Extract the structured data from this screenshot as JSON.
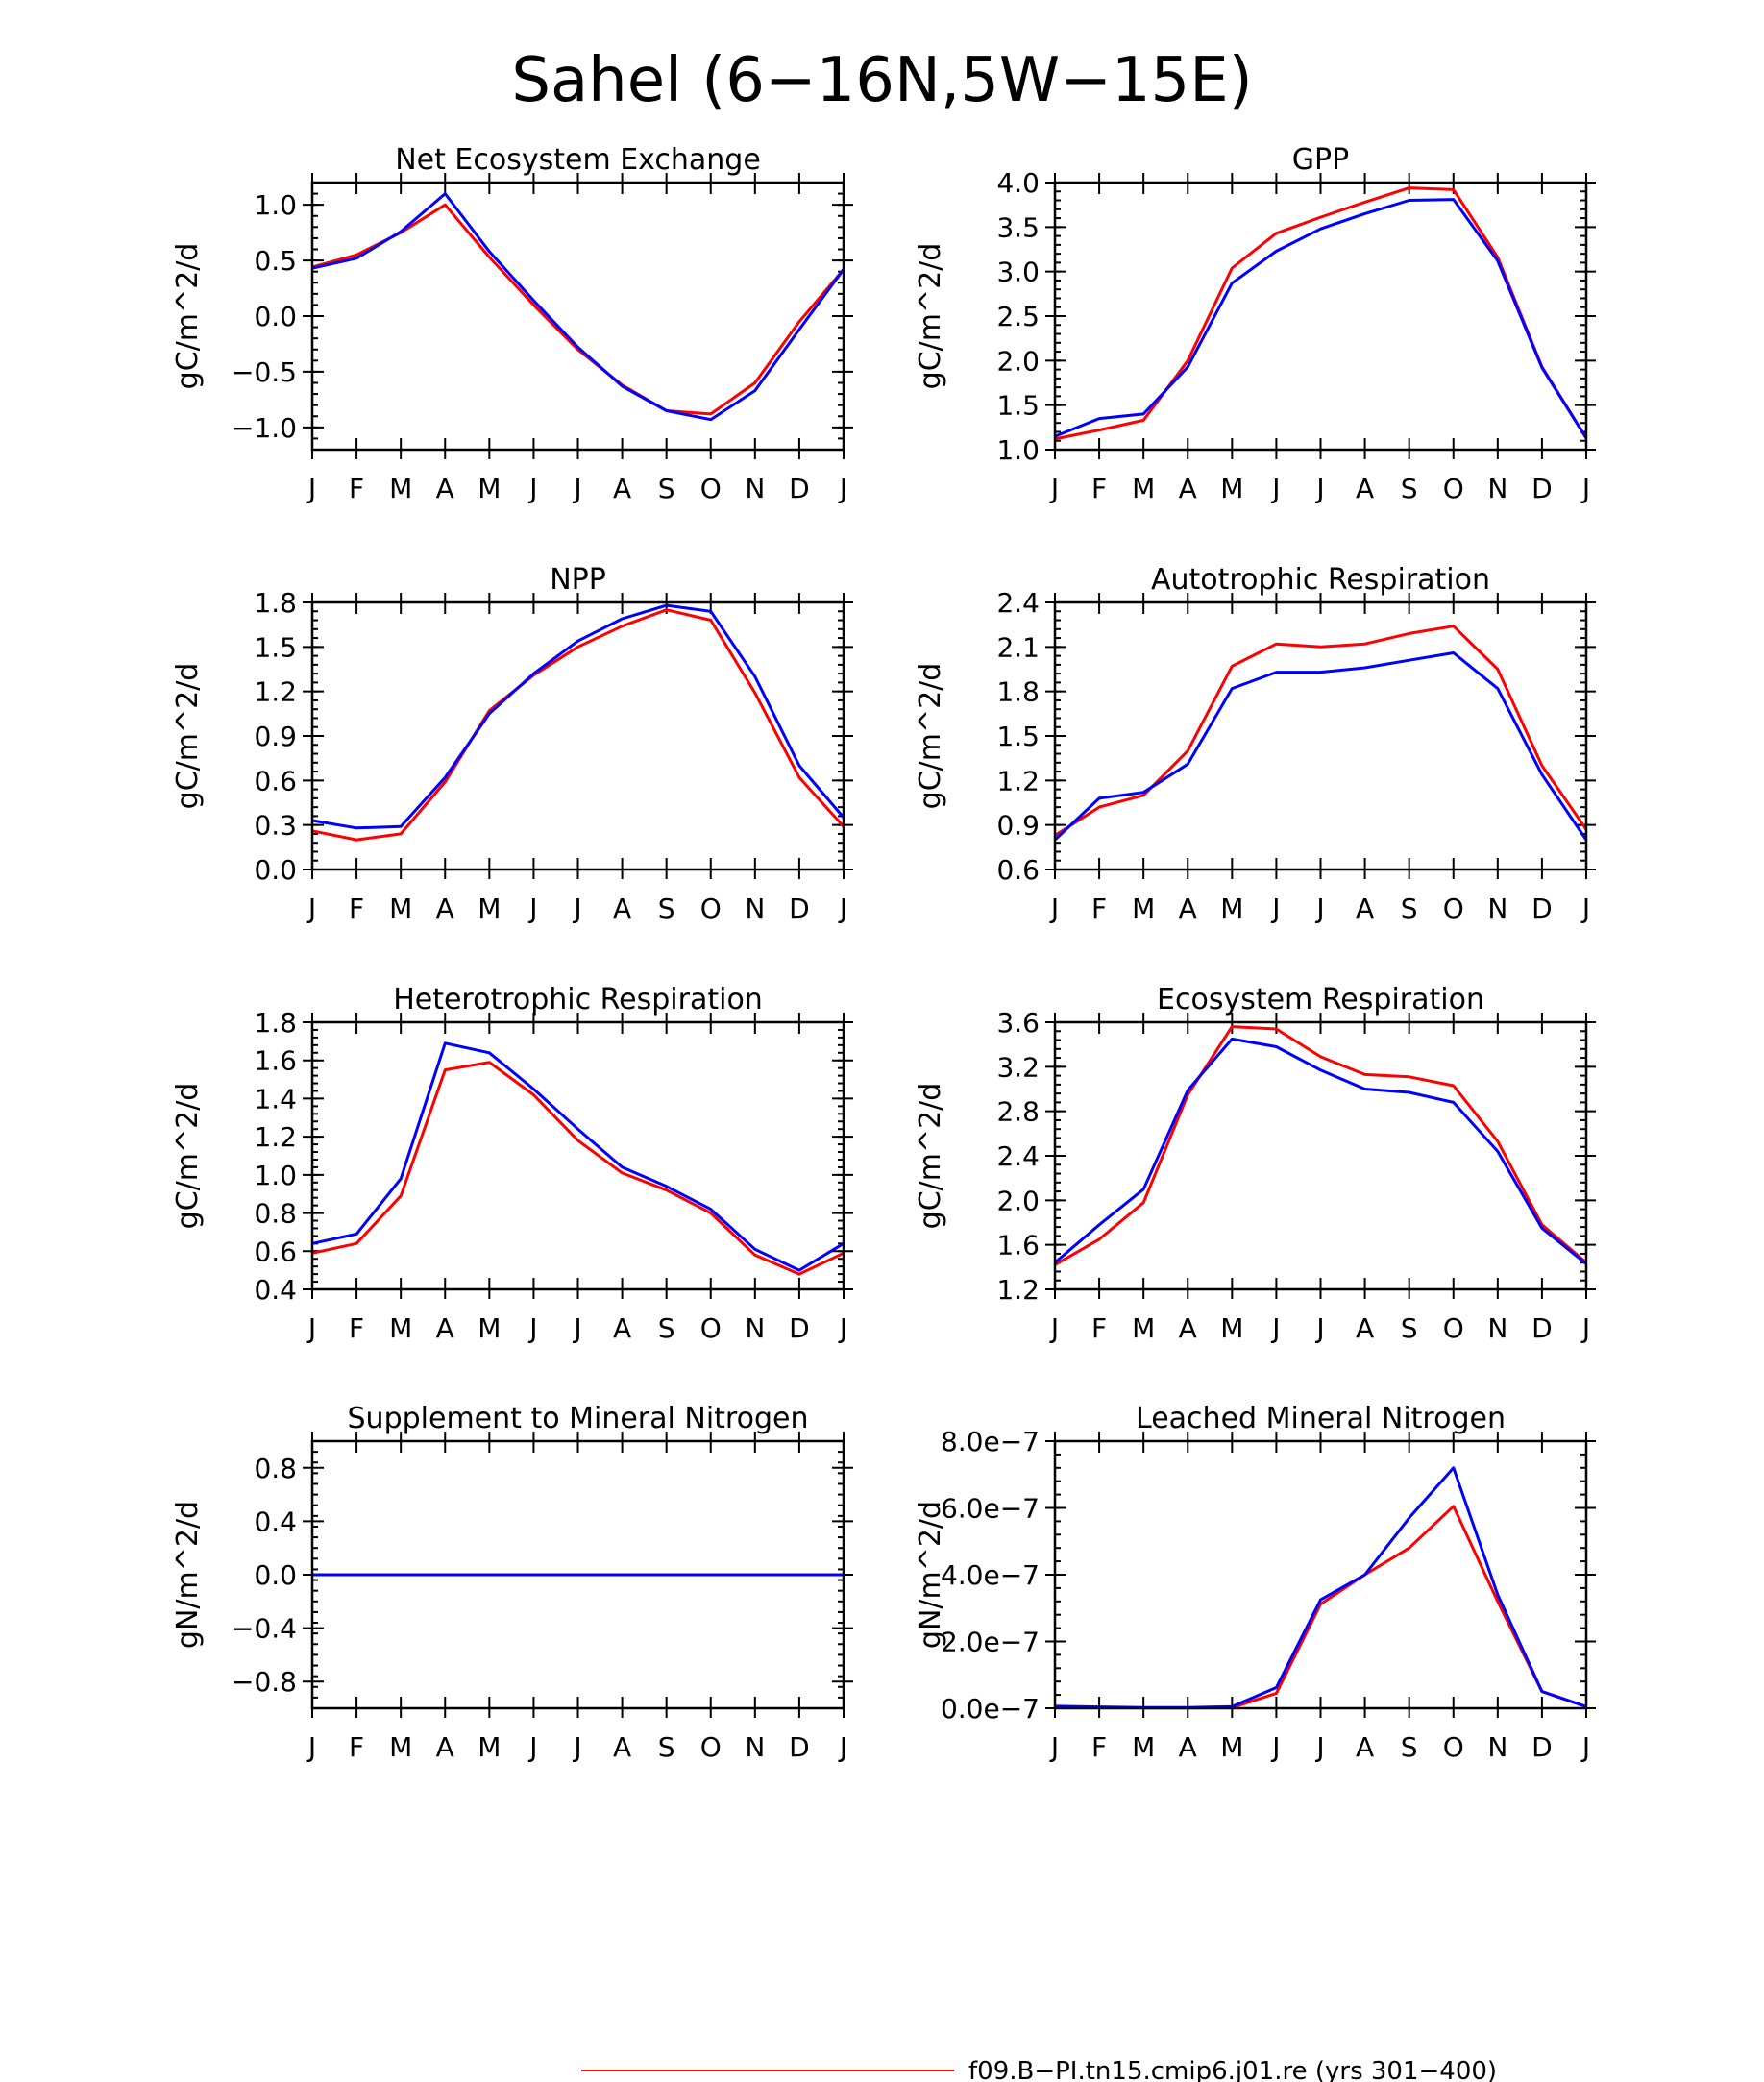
{
  "figure": {
    "title": "Sahel (6−16N,5W−15E)"
  },
  "legend": [
    {
      "label": "f09.B−PI.tn15.cmip6.j01.re (yrs 301−400)",
      "color": "#ff0000"
    }
  ],
  "chart_data": [
    {
      "type": "line",
      "title": "Net Ecosystem Exchange",
      "ylabel": "gC/m^2/d",
      "categories": [
        "J",
        "F",
        "M",
        "A",
        "M",
        "J",
        "J",
        "A",
        "S",
        "O",
        "N",
        "D",
        "J"
      ],
      "ylim": [
        -1.2,
        1.2
      ],
      "yticks": [
        -1.0,
        -0.5,
        0.0,
        0.5,
        1.0
      ],
      "ytick_labels": [
        "−1.0",
        "−0.5",
        "0.0",
        "0.5",
        "1.0"
      ],
      "series": [
        {
          "color": "#ff0000",
          "values": [
            0.44,
            0.55,
            0.75,
            1.0,
            0.53,
            0.1,
            -0.3,
            -0.62,
            -0.85,
            -0.88,
            -0.6,
            -0.05,
            0.42
          ]
        },
        {
          "color": "#0000ff",
          "values": [
            0.43,
            0.52,
            0.76,
            1.1,
            0.58,
            0.14,
            -0.28,
            -0.63,
            -0.85,
            -0.93,
            -0.67,
            -0.12,
            0.42
          ]
        }
      ]
    },
    {
      "type": "line",
      "title": "GPP",
      "ylabel": "gC/m^2/d",
      "categories": [
        "J",
        "F",
        "M",
        "A",
        "M",
        "J",
        "J",
        "A",
        "S",
        "O",
        "N",
        "D",
        "J"
      ],
      "ylim": [
        1.0,
        4.0
      ],
      "yticks": [
        1.0,
        1.5,
        2.0,
        2.5,
        3.0,
        3.5,
        4.0
      ],
      "ytick_labels": [
        "1.0",
        "1.5",
        "2.0",
        "2.5",
        "3.0",
        "3.5",
        "4.0"
      ],
      "series": [
        {
          "color": "#ff0000",
          "values": [
            1.12,
            1.22,
            1.33,
            2.0,
            3.04,
            3.43,
            3.61,
            3.78,
            3.94,
            3.92,
            3.16,
            1.93,
            1.13
          ]
        },
        {
          "color": "#0000ff",
          "values": [
            1.15,
            1.35,
            1.4,
            1.93,
            2.87,
            3.23,
            3.48,
            3.65,
            3.8,
            3.81,
            3.12,
            1.92,
            1.13
          ]
        }
      ]
    },
    {
      "type": "line",
      "title": "NPP",
      "ylabel": "gC/m^2/d",
      "categories": [
        "J",
        "F",
        "M",
        "A",
        "M",
        "J",
        "J",
        "A",
        "S",
        "O",
        "N",
        "D",
        "J"
      ],
      "ylim": [
        0.0,
        1.8
      ],
      "yticks": [
        0.0,
        0.3,
        0.6,
        0.9,
        1.2,
        1.5,
        1.8
      ],
      "ytick_labels": [
        "0.0",
        "0.3",
        "0.6",
        "0.9",
        "1.2",
        "1.5",
        "1.8"
      ],
      "series": [
        {
          "color": "#ff0000",
          "values": [
            0.26,
            0.2,
            0.24,
            0.59,
            1.07,
            1.31,
            1.5,
            1.64,
            1.75,
            1.68,
            1.19,
            0.62,
            0.29
          ]
        },
        {
          "color": "#0000ff",
          "values": [
            0.33,
            0.28,
            0.29,
            0.62,
            1.05,
            1.32,
            1.54,
            1.69,
            1.78,
            1.74,
            1.3,
            0.7,
            0.35
          ]
        }
      ]
    },
    {
      "type": "line",
      "title": "Autotrophic Respiration",
      "ylabel": "gC/m^2/d",
      "categories": [
        "J",
        "F",
        "M",
        "A",
        "M",
        "J",
        "J",
        "A",
        "S",
        "O",
        "N",
        "D",
        "J"
      ],
      "ylim": [
        0.6,
        2.4
      ],
      "yticks": [
        0.6,
        0.9,
        1.2,
        1.5,
        1.8,
        2.1,
        2.4
      ],
      "ytick_labels": [
        "0.6",
        "0.9",
        "1.2",
        "1.5",
        "1.8",
        "2.1",
        "2.4"
      ],
      "series": [
        {
          "color": "#ff0000",
          "values": [
            0.83,
            1.02,
            1.1,
            1.4,
            1.97,
            2.12,
            2.1,
            2.12,
            2.19,
            2.24,
            1.95,
            1.3,
            0.87
          ]
        },
        {
          "color": "#0000ff",
          "values": [
            0.8,
            1.08,
            1.12,
            1.31,
            1.82,
            1.93,
            1.93,
            1.96,
            2.01,
            2.06,
            1.82,
            1.24,
            0.8
          ]
        }
      ]
    },
    {
      "type": "line",
      "title": "Heterotrophic Respiration",
      "ylabel": "gC/m^2/d",
      "categories": [
        "J",
        "F",
        "M",
        "A",
        "M",
        "J",
        "J",
        "A",
        "S",
        "O",
        "N",
        "D",
        "J"
      ],
      "ylim": [
        0.4,
        1.8
      ],
      "yticks": [
        0.4,
        0.6,
        0.8,
        1.0,
        1.2,
        1.4,
        1.6,
        1.8
      ],
      "ytick_labels": [
        "0.4",
        "0.6",
        "0.8",
        "1.0",
        "1.2",
        "1.4",
        "1.6",
        "1.8"
      ],
      "series": [
        {
          "color": "#ff0000",
          "values": [
            0.59,
            0.64,
            0.89,
            1.55,
            1.59,
            1.42,
            1.18,
            1.01,
            0.92,
            0.8,
            0.58,
            0.48,
            0.59
          ]
        },
        {
          "color": "#0000ff",
          "values": [
            0.64,
            0.69,
            0.98,
            1.69,
            1.64,
            1.45,
            1.24,
            1.04,
            0.94,
            0.82,
            0.61,
            0.5,
            0.64
          ]
        }
      ]
    },
    {
      "type": "line",
      "title": "Ecosystem Respiration",
      "ylabel": "gC/m^2/d",
      "categories": [
        "J",
        "F",
        "M",
        "A",
        "M",
        "J",
        "J",
        "A",
        "S",
        "O",
        "N",
        "D",
        "J"
      ],
      "ylim": [
        1.2,
        3.6
      ],
      "yticks": [
        1.2,
        1.6,
        2.0,
        2.4,
        2.8,
        3.2,
        3.6
      ],
      "ytick_labels": [
        "1.2",
        "1.6",
        "2.0",
        "2.4",
        "2.8",
        "3.2",
        "3.6"
      ],
      "series": [
        {
          "color": "#ff0000",
          "values": [
            1.42,
            1.65,
            1.98,
            2.95,
            3.56,
            3.54,
            3.29,
            3.13,
            3.11,
            3.03,
            2.53,
            1.78,
            1.44
          ]
        },
        {
          "color": "#0000ff",
          "values": [
            1.44,
            1.78,
            2.1,
            2.99,
            3.45,
            3.38,
            3.17,
            3.0,
            2.97,
            2.88,
            2.44,
            1.75,
            1.43
          ]
        }
      ]
    },
    {
      "type": "line",
      "title": "Supplement to Mineral Nitrogen",
      "ylabel": "gN/m^2/d",
      "categories": [
        "J",
        "F",
        "M",
        "A",
        "M",
        "J",
        "J",
        "A",
        "S",
        "O",
        "N",
        "D",
        "J"
      ],
      "ylim": [
        -1.0,
        1.0
      ],
      "yticks": [
        -0.8,
        -0.4,
        0.0,
        0.4,
        0.8
      ],
      "ytick_labels": [
        "−0.8",
        "−0.4",
        "0.0",
        "0.4",
        "0.8"
      ],
      "series": [
        {
          "color": "#ff0000",
          "values": [
            0,
            0,
            0,
            0,
            0,
            0,
            0,
            0,
            0,
            0,
            0,
            0,
            0
          ]
        },
        {
          "color": "#0000ff",
          "values": [
            0,
            0,
            0,
            0,
            0,
            0,
            0,
            0,
            0,
            0,
            0,
            0,
            0
          ]
        }
      ]
    },
    {
      "type": "line",
      "title": "Leached Mineral Nitrogen",
      "ylabel": "gN/m^2/d",
      "categories": [
        "J",
        "F",
        "M",
        "A",
        "M",
        "J",
        "J",
        "A",
        "S",
        "O",
        "N",
        "D",
        "J"
      ],
      "ylim": [
        0.0,
        8e-07
      ],
      "yticks": [
        0.0,
        2e-07,
        4e-07,
        6e-07,
        8e-07
      ],
      "ytick_labels": [
        "0.0e−7",
        "2.0e−7",
        "4.0e−7",
        "6.0e−7",
        "8.0e−7"
      ],
      "series": [
        {
          "color": "#ff0000",
          "values": [
            5e-09,
            3e-09,
            1e-09,
            1e-09,
            2e-09,
            4.5e-08,
            3.12e-07,
            4e-07,
            4.8e-07,
            6.05e-07,
            3.2e-07,
            5e-08,
            5e-09
          ]
        },
        {
          "color": "#0000ff",
          "values": [
            6e-09,
            4e-09,
            2e-09,
            2e-09,
            5e-09,
            6.2e-08,
            3.25e-07,
            4e-07,
            5.7e-07,
            7.2e-07,
            3.4e-07,
            5e-08,
            5e-09
          ]
        }
      ]
    }
  ]
}
